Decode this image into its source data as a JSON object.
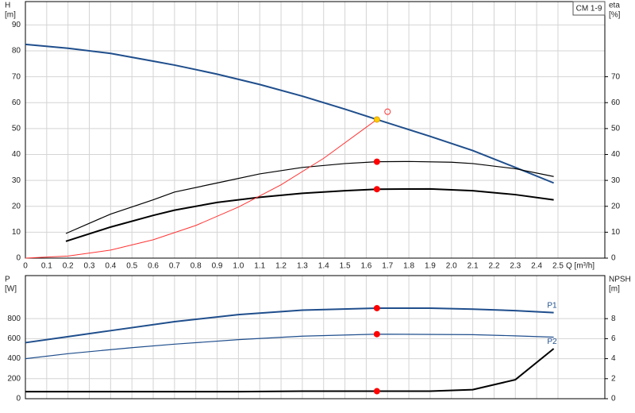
{
  "chart_data": [
    {
      "type": "line",
      "label_box": "CM 1-9",
      "ylabel": "H",
      "yunit": "[m]",
      "y2label": "eta",
      "y2unit": "[%]",
      "xlabel": "Q [m³/h]",
      "xlim": [
        0,
        2.72
      ],
      "xticks": [
        0,
        0.1,
        0.2,
        0.3,
        0.4,
        0.5,
        0.6,
        0.7,
        0.8,
        0.9,
        {
          "value": 1,
          "label": "1.0"
        },
        1.1,
        1.2,
        1.3,
        1.4,
        1.5,
        1.6,
        1.7,
        1.8,
        1.9,
        {
          "value": 2,
          "label": "2.0"
        },
        2.1,
        2.2,
        2.3,
        2.4,
        2.5
      ],
      "ylim": [
        0,
        99
      ],
      "yticks": [
        0,
        10,
        20,
        30,
        40,
        50,
        60,
        70,
        80,
        90
      ],
      "y2lim": [
        0,
        99
      ],
      "y2ticks": [
        0,
        10,
        20,
        30,
        40,
        50,
        60,
        70
      ],
      "grid": true,
      "series": [
        {
          "color": "#1f4e8c",
          "width": 2,
          "x": [
            0,
            0.2,
            0.4,
            0.6,
            0.7,
            0.9,
            1.1,
            1.3,
            1.5,
            1.65,
            1.9,
            2.1,
            2.3,
            2.48
          ],
          "values": [
            82.5,
            81,
            79,
            76,
            74.5,
            71,
            67,
            62.5,
            57.5,
            53.5,
            47,
            41.5,
            35,
            29
          ]
        },
        {
          "color": "#000000",
          "width": 1.2,
          "axis": "y2",
          "x": [
            0.19,
            0.4,
            0.6,
            0.7,
            0.9,
            1.1,
            1.3,
            1.5,
            1.65,
            1.8,
            2.0,
            2.1,
            2.3,
            2.48
          ],
          "values": [
            9.5,
            17,
            22.5,
            25.5,
            29,
            32.5,
            35,
            36.5,
            37.2,
            37.3,
            37,
            36.5,
            34.5,
            31.5
          ]
        },
        {
          "color": "#000000",
          "width": 2,
          "axis": "y2",
          "x": [
            0.19,
            0.4,
            0.6,
            0.7,
            0.9,
            1.1,
            1.3,
            1.5,
            1.65,
            1.9,
            2.1,
            2.3,
            2.48
          ],
          "values": [
            6.5,
            12,
            16.5,
            18.5,
            21.5,
            23.5,
            25,
            26,
            26.6,
            26.7,
            26,
            24.5,
            22.5
          ]
        },
        {
          "color": "#ff3333",
          "width": 1,
          "x": [
            0,
            0.2,
            0.4,
            0.6,
            0.8,
            1.0,
            1.2,
            1.4,
            1.65
          ],
          "values": [
            0,
            0.8,
            3.1,
            7.1,
            12.6,
            19.7,
            28.3,
            38.5,
            53.5
          ]
        },
        {
          "color": "#ffcc00",
          "marker": "dot",
          "x": [
            1.65
          ],
          "values": [
            53.5
          ]
        },
        {
          "color": "#ff0000",
          "marker": "dot",
          "axis": "y2",
          "x": [
            1.65,
            1.65
          ],
          "values": [
            37.2,
            26.6
          ]
        },
        {
          "color": "#ff3333",
          "marker": "ring",
          "x": [
            1.7
          ],
          "values": [
            56.5
          ]
        }
      ]
    },
    {
      "type": "line",
      "ylabel": "P",
      "yunit": "[W]",
      "y2label": "NPSH",
      "y2unit": "[m]",
      "xlim": [
        0,
        2.72
      ],
      "xticks": [
        0,
        0.1,
        0.2,
        0.3,
        0.4,
        0.5,
        0.6,
        0.7,
        0.8,
        0.9,
        1,
        1.1,
        1.2,
        1.3,
        1.4,
        1.5,
        1.6,
        1.7,
        1.8,
        1.9,
        2,
        2.1,
        2.2,
        2.3,
        2.4,
        2.5
      ],
      "xtick_labels": false,
      "ylim": [
        0,
        1230
      ],
      "yticks": [
        0,
        200,
        400,
        600,
        800
      ],
      "y2lim": [
        0,
        12.3
      ],
      "y2ticks": [
        0,
        2,
        4,
        6,
        8
      ],
      "grid": true,
      "series": [
        {
          "name": "P1",
          "color": "#1f4e8c",
          "width": 2,
          "x": [
            0,
            0.2,
            0.4,
            0.7,
            1.0,
            1.3,
            1.65,
            1.9,
            2.1,
            2.3,
            2.48
          ],
          "values": [
            560,
            620,
            680,
            770,
            840,
            885,
            905,
            905,
            895,
            880,
            860
          ]
        },
        {
          "name": "P2",
          "color": "#1f4e8c",
          "width": 1.2,
          "x": [
            0,
            0.2,
            0.5,
            0.7,
            1.0,
            1.3,
            1.65,
            2.1,
            2.3,
            2.48
          ],
          "values": [
            400,
            450,
            510,
            545,
            590,
            625,
            645,
            640,
            628,
            615
          ]
        },
        {
          "color": "#000000",
          "width": 2,
          "axis": "y2",
          "x": [
            0,
            0.7,
            1.0,
            1.3,
            1.65,
            1.9,
            2.1,
            2.3,
            2.48
          ],
          "values": [
            0.7,
            0.7,
            0.7,
            0.75,
            0.75,
            0.75,
            0.9,
            1.9,
            5.0
          ]
        },
        {
          "color": "#ff0000",
          "marker": "dot",
          "x": [
            1.65,
            1.65
          ],
          "values": [
            905,
            645
          ]
        },
        {
          "color": "#ff0000",
          "marker": "dot",
          "axis": "y2",
          "x": [
            1.65
          ],
          "values": [
            0.75
          ]
        }
      ]
    }
  ]
}
